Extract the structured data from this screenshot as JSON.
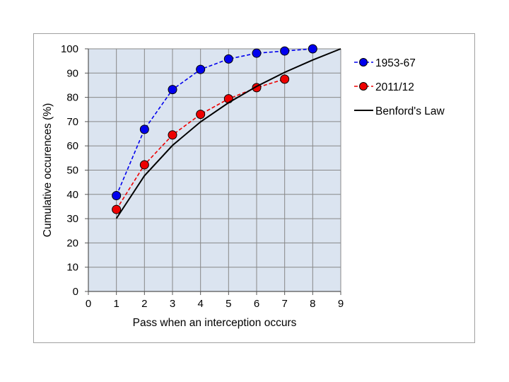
{
  "chart_data": {
    "type": "line",
    "title": "",
    "xlabel": "Pass when an interception occurs",
    "ylabel": "Cumulative occurences (%)",
    "xlim": [
      0,
      9
    ],
    "ylim": [
      0,
      100
    ],
    "x_ticks": [
      "0",
      "1",
      "2",
      "3",
      "4",
      "5",
      "6",
      "7",
      "8",
      "9"
    ],
    "y_ticks": [
      "0",
      "10",
      "20",
      "30",
      "40",
      "50",
      "60",
      "70",
      "80",
      "90",
      "100"
    ],
    "grid": true,
    "legend_position": "right",
    "plot_background": "#dbe4f0",
    "series": [
      {
        "name": "1953-67",
        "color": "#0000ee",
        "style": "dashed-markers",
        "x": [
          1,
          2,
          3,
          4,
          5,
          6,
          7,
          8
        ],
        "y": [
          39.5,
          66.8,
          83.2,
          91.5,
          95.8,
          98.2,
          99.1,
          100
        ]
      },
      {
        "name": "2011/12",
        "color": "#ee0000",
        "style": "dashed-markers",
        "x": [
          1,
          2,
          3,
          4,
          5,
          6,
          7
        ],
        "y": [
          33.8,
          52.2,
          64.5,
          73,
          79.4,
          84,
          87.5
        ]
      },
      {
        "name": "Benford's Law",
        "color": "#000000",
        "style": "solid",
        "x": [
          1,
          2,
          3,
          4,
          5,
          6,
          7,
          8,
          9
        ],
        "y": [
          30.1,
          47.7,
          60.2,
          69.9,
          77.8,
          84.5,
          90.3,
          95.4,
          100
        ]
      }
    ]
  }
}
